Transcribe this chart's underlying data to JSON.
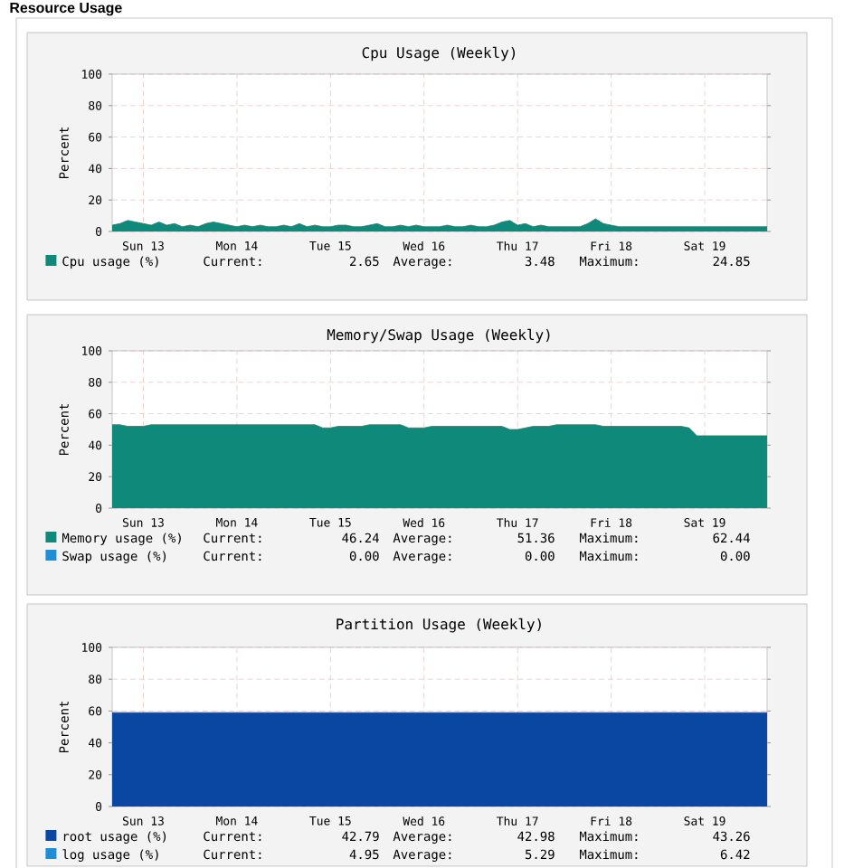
{
  "chart_data": [
    {
      "type": "area",
      "title": "Cpu Usage (Weekly)",
      "ylabel": "Percent",
      "ylim": [
        0,
        100
      ],
      "yticks": [
        0,
        20,
        40,
        60,
        80,
        100
      ],
      "grid": true,
      "legend": "bottom",
      "categories": [
        null,
        null,
        null,
        null,
        "Sun 13",
        null,
        null,
        null,
        null,
        null,
        null,
        null,
        null,
        null,
        null,
        null,
        "Mon 14",
        null,
        null,
        null,
        null,
        null,
        null,
        null,
        null,
        null,
        null,
        null,
        "Tue 15",
        null,
        null,
        null,
        null,
        null,
        null,
        null,
        null,
        null,
        null,
        null,
        "Wed 16",
        null,
        null,
        null,
        null,
        null,
        null,
        null,
        null,
        null,
        null,
        null,
        "Thu 17",
        null,
        null,
        null,
        null,
        null,
        null,
        null,
        null,
        null,
        null,
        null,
        "Fri 18",
        null,
        null,
        null,
        null,
        null,
        null,
        null,
        null,
        null,
        null,
        null,
        "Sat 19",
        null,
        null,
        null,
        null,
        null,
        null,
        null,
        null
      ],
      "series": [
        {
          "name": "Cpu usage (%)",
          "color": "#0f8a7a",
          "values": [
            4,
            5,
            7,
            6,
            5,
            4,
            6,
            4,
            5,
            3,
            4,
            3,
            5,
            6,
            5,
            4,
            3,
            4,
            3,
            4,
            3,
            3,
            4,
            3,
            5,
            3,
            4,
            3,
            3,
            4,
            4,
            3,
            3,
            4,
            5,
            3,
            3,
            4,
            3,
            4,
            3,
            3,
            3,
            4,
            3,
            3,
            4,
            3,
            3,
            4,
            6,
            7,
            4,
            5,
            3,
            4,
            3,
            3,
            3,
            3,
            3,
            5,
            8,
            5,
            4,
            3,
            3,
            3,
            3,
            3,
            3,
            3,
            3,
            3,
            3,
            3,
            3,
            3,
            3,
            3,
            3,
            3,
            3,
            3,
            3
          ]
        }
      ],
      "annotations": [
        "Current:",
        "2.65",
        "Average:",
        "3.48",
        "Maximum:",
        "24.85",
        "Resource Usage"
      ]
    },
    {
      "type": "area",
      "title": "Memory/Swap Usage (Weekly)",
      "ylabel": "Percent",
      "ylim": [
        0,
        100
      ],
      "yticks": [
        0,
        20,
        40,
        60,
        80,
        100
      ],
      "grid": true,
      "legend": "bottom",
      "categories": [
        null,
        null,
        null,
        null,
        "Sun 13",
        null,
        null,
        null,
        null,
        null,
        null,
        null,
        null,
        null,
        null,
        null,
        "Mon 14",
        null,
        null,
        null,
        null,
        null,
        null,
        null,
        null,
        null,
        null,
        null,
        "Tue 15",
        null,
        null,
        null,
        null,
        null,
        null,
        null,
        null,
        null,
        null,
        null,
        "Wed 16",
        null,
        null,
        null,
        null,
        null,
        null,
        null,
        null,
        null,
        null,
        null,
        "Thu 17",
        null,
        null,
        null,
        null,
        null,
        null,
        null,
        null,
        null,
        null,
        null,
        "Fri 18",
        null,
        null,
        null,
        null,
        null,
        null,
        null,
        null,
        null,
        null,
        null,
        "Sat 19",
        null,
        null,
        null,
        null,
        null,
        null,
        null,
        null
      ],
      "series": [
        {
          "name": "Memory usage (%)",
          "color": "#0f8a7a",
          "values": [
            53,
            53,
            52,
            52,
            52,
            53,
            53,
            53,
            53,
            53,
            53,
            53,
            53,
            53,
            53,
            53,
            53,
            53,
            53,
            53,
            53,
            53,
            53,
            53,
            53,
            53,
            53,
            51,
            51,
            52,
            52,
            52,
            52,
            53,
            53,
            53,
            53,
            53,
            51,
            51,
            51,
            52,
            52,
            52,
            52,
            52,
            52,
            52,
            52,
            52,
            52,
            50,
            50,
            51,
            52,
            52,
            52,
            53,
            53,
            53,
            53,
            53,
            53,
            52,
            52,
            52,
            52,
            52,
            52,
            52,
            52,
            52,
            52,
            52,
            51,
            46,
            46,
            46,
            46,
            46,
            46,
            46,
            46,
            46,
            46
          ]
        },
        {
          "name": "Swap   usage (%)",
          "color": "#1e8fd6",
          "values": [
            null,
            null,
            null,
            null,
            null,
            null,
            null,
            null,
            null,
            null,
            null,
            null,
            null,
            null,
            null,
            null,
            null,
            null,
            null,
            null,
            null,
            null,
            null,
            null,
            null,
            null,
            null,
            null,
            null,
            null,
            null,
            null,
            null,
            null,
            null,
            null,
            null,
            null,
            null,
            null,
            null,
            null,
            null,
            null,
            null,
            null,
            null,
            null,
            null,
            null,
            null,
            null,
            null,
            null,
            null,
            null,
            null,
            null,
            null,
            null,
            null,
            null,
            null,
            null,
            null,
            null,
            null,
            null,
            null,
            null,
            null,
            null,
            null,
            null,
            null,
            null,
            null,
            null,
            null,
            null,
            null,
            null,
            null,
            null,
            null
          ]
        }
      ],
      "annotations": [
        "Current:",
        "46.24",
        "Average:",
        "51.36",
        "Maximum:",
        "62.44",
        "Current:",
        "0.00",
        "Average:",
        "0.00",
        "Maximum:",
        "0.00"
      ]
    },
    {
      "type": "area",
      "title": "Partition Usage (Weekly)",
      "ylabel": "Percent",
      "ylim": [
        0,
        100
      ],
      "yticks": [
        0,
        20,
        40,
        60,
        80,
        100
      ],
      "grid": true,
      "legend": "bottom",
      "categories": [
        null,
        null,
        null,
        null,
        "Sun 13",
        null,
        null,
        null,
        null,
        null,
        null,
        null,
        null,
        null,
        null,
        null,
        "Mon 14",
        null,
        null,
        null,
        null,
        null,
        null,
        null,
        null,
        null,
        null,
        null,
        "Tue 15",
        null,
        null,
        null,
        null,
        null,
        null,
        null,
        null,
        null,
        null,
        null,
        "Wed 16",
        null,
        null,
        null,
        null,
        null,
        null,
        null,
        null,
        null,
        null,
        null,
        "Thu 17",
        null,
        null,
        null,
        null,
        null,
        null,
        null,
        null,
        null,
        null,
        null,
        "Fri 18",
        null,
        null,
        null,
        null,
        null,
        null,
        null,
        null,
        null,
        null,
        null,
        "Sat 19",
        null,
        null,
        null,
        null,
        null,
        null,
        null,
        null
      ],
      "series": [
        {
          "name": "root     usage (%)",
          "color": "#0a47a3",
          "values": [
            59,
            59,
            59,
            59,
            59,
            59,
            59,
            59,
            59,
            59,
            59,
            59,
            59,
            59,
            59,
            59,
            59,
            59,
            59,
            59,
            59,
            59,
            59,
            59,
            59,
            59,
            59,
            59,
            59,
            59,
            59,
            59,
            59,
            59,
            59,
            59,
            59,
            59,
            59,
            59,
            59,
            59,
            59,
            59,
            59,
            59,
            59,
            59,
            59,
            59,
            59,
            59,
            59,
            59,
            59,
            59,
            59,
            59,
            59,
            59,
            59,
            59,
            59,
            59,
            59,
            59,
            59,
            59,
            59,
            59,
            59,
            59,
            59,
            59,
            59,
            59,
            59,
            59,
            59,
            59,
            59,
            59,
            59,
            59,
            59
          ]
        },
        {
          "name": "log      usage (%)",
          "color": "#1e8fd6",
          "values": [
            null,
            null,
            null,
            null,
            null,
            null,
            null,
            null,
            null,
            null,
            null,
            null,
            null,
            null,
            null,
            null,
            null,
            null,
            null,
            null,
            null,
            null,
            null,
            null,
            null,
            null,
            null,
            null,
            null,
            null,
            null,
            null,
            null,
            null,
            null,
            null,
            null,
            null,
            null,
            null,
            null,
            null,
            null,
            null,
            null,
            null,
            null,
            null,
            null,
            null,
            null,
            null,
            null,
            null,
            null,
            null,
            null,
            null,
            null,
            null,
            null,
            null,
            null,
            null,
            null,
            null,
            null,
            null,
            null,
            null,
            null,
            null,
            null,
            null,
            null,
            null,
            null,
            null,
            null,
            null,
            null,
            null,
            null,
            null,
            null
          ]
        }
      ],
      "annotations": [
        "Current:",
        "42.79",
        "Average:",
        "42.98",
        "Maximum:",
        "43.26",
        "Current:",
        "4.95",
        "Average:",
        "5.29",
        "Maximum:",
        "6.42"
      ]
    }
  ]
}
